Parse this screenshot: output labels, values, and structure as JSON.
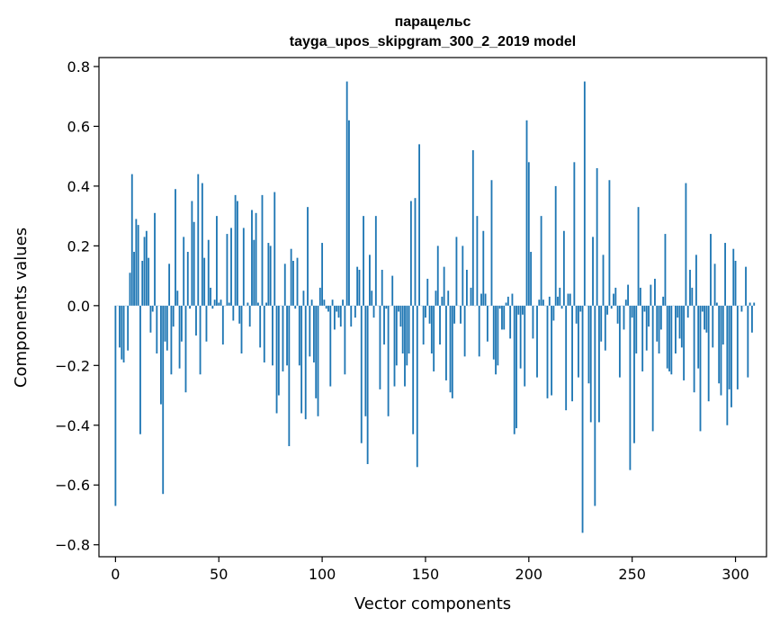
{
  "chart_data": {
    "type": "bar",
    "title": "парацельс",
    "subtitle": "tayga_upos_skipgram_300_2_2019 model",
    "xlabel": "Vector components",
    "ylabel": "Components values",
    "xlim": [
      -8,
      315
    ],
    "ylim": [
      -0.84,
      0.83
    ],
    "xticks": [
      0,
      50,
      100,
      150,
      200,
      250,
      300
    ],
    "xtick_labels": [
      "0",
      "50",
      "100",
      "150",
      "200",
      "250",
      "300"
    ],
    "yticks": [
      -0.8,
      -0.6,
      -0.4,
      -0.2,
      0.0,
      0.2,
      0.4,
      0.6,
      0.8
    ],
    "ytick_labels": [
      "−0.8",
      "−0.6",
      "−0.4",
      "−0.2",
      "0.0",
      "0.2",
      "0.4",
      "0.6",
      "0.8"
    ],
    "bar_color": "#1f77b4",
    "values": [
      -0.67,
      0.0,
      -0.14,
      -0.18,
      -0.19,
      0.0,
      -0.15,
      0.11,
      0.44,
      0.18,
      0.29,
      0.27,
      -0.43,
      0.15,
      0.23,
      0.25,
      0.16,
      -0.09,
      -0.02,
      0.31,
      -0.16,
      0.0,
      -0.33,
      -0.63,
      -0.12,
      -0.15,
      0.14,
      -0.23,
      -0.07,
      0.39,
      0.05,
      -0.21,
      -0.12,
      0.23,
      -0.29,
      0.18,
      -0.01,
      0.35,
      0.28,
      -0.1,
      0.44,
      -0.23,
      0.41,
      0.16,
      -0.12,
      0.22,
      0.06,
      -0.01,
      0.02,
      0.3,
      0.01,
      0.02,
      -0.13,
      0.0,
      0.24,
      0.01,
      0.26,
      -0.05,
      0.37,
      0.35,
      -0.06,
      -0.16,
      0.26,
      0.0,
      0.01,
      -0.07,
      0.32,
      0.22,
      0.31,
      0.01,
      -0.14,
      0.37,
      -0.19,
      0.01,
      0.21,
      0.2,
      -0.2,
      0.38,
      -0.36,
      -0.3,
      0.0,
      -0.22,
      0.14,
      -0.2,
      -0.47,
      0.19,
      0.15,
      -0.01,
      0.16,
      -0.2,
      -0.36,
      0.05,
      -0.38,
      0.33,
      -0.17,
      0.02,
      -0.19,
      -0.31,
      -0.37,
      0.06,
      0.21,
      0.02,
      -0.01,
      -0.02,
      -0.27,
      0.02,
      -0.08,
      -0.02,
      -0.04,
      -0.07,
      0.02,
      -0.23,
      0.75,
      0.62,
      -0.07,
      0.0,
      -0.04,
      0.13,
      0.12,
      -0.46,
      0.3,
      -0.37,
      -0.53,
      0.17,
      0.05,
      -0.04,
      0.3,
      0.0,
      -0.28,
      0.12,
      -0.13,
      -0.01,
      -0.37,
      0.0,
      0.1,
      -0.27,
      -0.2,
      -0.02,
      -0.07,
      -0.16,
      -0.27,
      -0.2,
      -0.16,
      0.35,
      -0.43,
      0.36,
      -0.54,
      0.54,
      0.0,
      -0.13,
      -0.04,
      0.09,
      -0.06,
      -0.16,
      -0.22,
      0.05,
      0.2,
      -0.13,
      0.03,
      0.13,
      -0.25,
      0.05,
      -0.29,
      -0.31,
      -0.06,
      0.23,
      0.0,
      -0.06,
      0.2,
      -0.17,
      0.12,
      0.0,
      0.06,
      0.52,
      0.0,
      0.3,
      -0.17,
      0.04,
      0.25,
      0.04,
      -0.12,
      0.0,
      0.42,
      -0.18,
      -0.23,
      -0.2,
      -0.01,
      -0.08,
      -0.08,
      0.01,
      0.03,
      -0.11,
      0.04,
      -0.43,
      -0.41,
      -0.03,
      -0.21,
      -0.03,
      -0.27,
      0.62,
      0.48,
      0.18,
      -0.11,
      0.0,
      -0.24,
      0.02,
      0.3,
      0.02,
      0.0,
      -0.31,
      0.03,
      -0.3,
      -0.05,
      0.4,
      0.03,
      0.06,
      -0.01,
      0.25,
      -0.35,
      0.04,
      0.04,
      -0.32,
      0.48,
      -0.06,
      -0.24,
      -0.02,
      -0.76,
      0.75,
      0.0,
      -0.26,
      -0.39,
      0.23,
      -0.67,
      0.46,
      -0.39,
      -0.12,
      0.17,
      -0.15,
      -0.03,
      0.42,
      -0.01,
      0.04,
      0.06,
      -0.06,
      -0.24,
      0.0,
      -0.08,
      0.02,
      0.07,
      -0.55,
      -0.04,
      -0.46,
      -0.16,
      0.33,
      0.06,
      -0.22,
      -0.02,
      -0.15,
      -0.07,
      0.07,
      -0.42,
      0.09,
      -0.12,
      -0.16,
      -0.08,
      0.03,
      0.24,
      -0.21,
      -0.22,
      -0.23,
      0.0,
      -0.16,
      -0.04,
      -0.11,
      -0.14,
      -0.25,
      0.41,
      -0.04,
      0.12,
      0.06,
      -0.29,
      0.17,
      -0.21,
      -0.42,
      -0.02,
      -0.08,
      -0.09,
      -0.32,
      0.24,
      -0.14,
      0.14,
      0.01,
      -0.26,
      -0.3,
      -0.13,
      0.21,
      -0.4,
      -0.28,
      -0.34,
      0.19,
      0.15,
      -0.28,
      0.0,
      -0.02,
      0.0,
      0.13,
      -0.24,
      0.01,
      -0.09,
      0.01
    ]
  }
}
